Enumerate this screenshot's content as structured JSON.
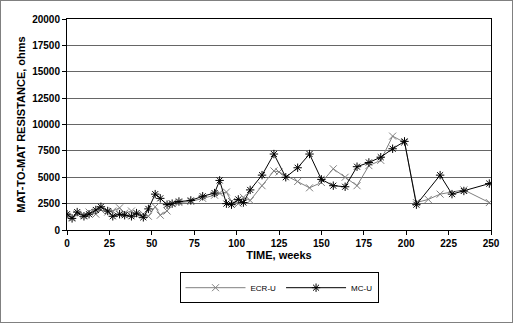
{
  "chart_data": {
    "type": "line",
    "x_label": "TIME, weeks",
    "y_label": "MAT-TO-MAT RESISTANCE, ohms",
    "xlim": [
      0,
      250
    ],
    "xticks": [
      0,
      25,
      50,
      75,
      100,
      125,
      150,
      175,
      200,
      225,
      250
    ],
    "ylim": [
      0,
      20000
    ],
    "yticks": [
      0,
      2500,
      5000,
      7500,
      10000,
      12500,
      15000,
      17500,
      20000
    ],
    "grid": true,
    "legend": "bottom",
    "series": [
      {
        "name": "ECR-U",
        "color": "#808080",
        "marker": "x",
        "line_style": "solid",
        "x": [
          0,
          3,
          6,
          10,
          13,
          17,
          20,
          24,
          27,
          31,
          34,
          38,
          41,
          45,
          48,
          52,
          55,
          59,
          62,
          66,
          73,
          80,
          87,
          90,
          94,
          97,
          101,
          104,
          108,
          115,
          122,
          125,
          136,
          143,
          150,
          157,
          164,
          171,
          178,
          185,
          192,
          199,
          206,
          213,
          220,
          234,
          249
        ],
        "values": [
          1300,
          1200,
          1500,
          1400,
          1700,
          1500,
          1900,
          1700,
          1800,
          2100,
          1600,
          1800,
          1400,
          1500,
          1300,
          2200,
          1400,
          1800,
          2500,
          2600,
          2700,
          3000,
          3300,
          3500,
          3600,
          2700,
          2500,
          3100,
          2800,
          4200,
          5600,
          5500,
          4600,
          4000,
          4500,
          5800,
          5000,
          4200,
          6100,
          6600,
          8900,
          8300,
          2600,
          2900,
          3400,
          3800,
          2600
        ]
      },
      {
        "name": "MC-U",
        "color": "#000000",
        "marker": "star",
        "line_style": "solid",
        "x": [
          0,
          3,
          6,
          10,
          13,
          17,
          20,
          24,
          27,
          31,
          34,
          38,
          41,
          45,
          48,
          52,
          55,
          59,
          62,
          66,
          73,
          80,
          87,
          90,
          94,
          97,
          101,
          104,
          108,
          115,
          122,
          129,
          136,
          143,
          150,
          157,
          164,
          171,
          178,
          185,
          192,
          199,
          206,
          220,
          227,
          234,
          249
        ],
        "values": [
          1500,
          1100,
          1700,
          1300,
          1500,
          1900,
          2200,
          1800,
          1300,
          1500,
          1400,
          1300,
          1600,
          1200,
          2000,
          3400,
          3000,
          2400,
          2500,
          2700,
          2800,
          3200,
          3500,
          4700,
          2500,
          2400,
          2900,
          2600,
          3800,
          5200,
          7200,
          5000,
          5900,
          7200,
          4800,
          4200,
          4100,
          6000,
          6400,
          6900,
          7700,
          8400,
          2400,
          5200,
          3400,
          3700,
          4400
        ]
      }
    ]
  }
}
